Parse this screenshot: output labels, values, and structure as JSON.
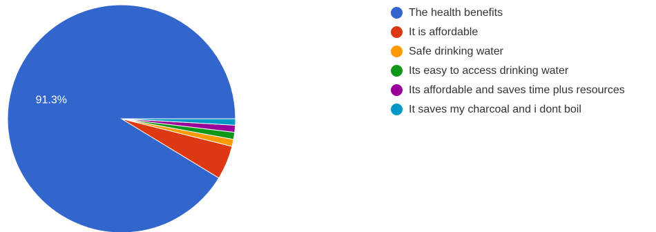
{
  "chart_data": {
    "type": "pie",
    "title": "",
    "legend_position": "right",
    "slices": [
      {
        "label": "The health benefits",
        "value": 91.3,
        "color": "#3366cc",
        "data_label": "91.3%"
      },
      {
        "label": "It is affordable",
        "value": 4.8,
        "color": "#dc3912",
        "data_label": ""
      },
      {
        "label": "Safe drinking water",
        "value": 1.0,
        "color": "#ff9900",
        "data_label": ""
      },
      {
        "label": "Its easy to access drinking water",
        "value": 1.0,
        "color": "#109618",
        "data_label": ""
      },
      {
        "label": "Its affordable and saves time plus resources",
        "value": 1.0,
        "color": "#990099",
        "data_label": ""
      },
      {
        "label": "It saves my charcoal and i dont boil",
        "value": 0.9,
        "color": "#0099c6",
        "data_label": ""
      }
    ]
  }
}
